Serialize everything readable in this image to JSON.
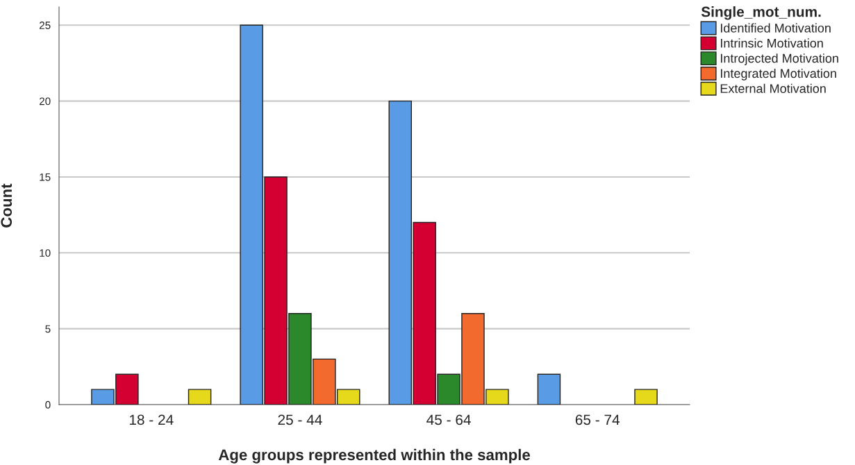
{
  "chart_data": {
    "type": "bar",
    "xlabel": "Age groups represented within the sample",
    "ylabel": "Count",
    "legend_title": "Single_mot_num.",
    "categories": [
      "18 - 24",
      "25 - 44",
      "45 - 64",
      "65 - 74"
    ],
    "series": [
      {
        "name": "Identified Motivation",
        "color": "#5a9be6",
        "values": [
          1,
          25,
          20,
          2
        ]
      },
      {
        "name": "Intrinsic Motivation",
        "color": "#d50032",
        "values": [
          2,
          15,
          12,
          0
        ]
      },
      {
        "name": "Introjected Motivation",
        "color": "#2b882b",
        "values": [
          0,
          6,
          2,
          0
        ]
      },
      {
        "name": "Integrated Motivation",
        "color": "#f36a2f",
        "values": [
          0,
          3,
          6,
          0
        ]
      },
      {
        "name": "External Motivation",
        "color": "#e6d81a",
        "values": [
          1,
          1,
          1,
          1
        ]
      }
    ],
    "ylim": [
      0,
      26.2
    ],
    "yticks": [
      0,
      5,
      10,
      15,
      20,
      25
    ],
    "grid": "y",
    "legend": "top right"
  }
}
